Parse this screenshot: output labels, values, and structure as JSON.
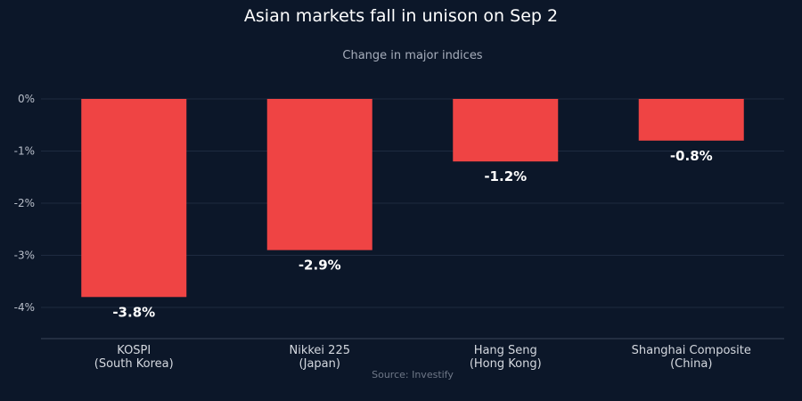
{
  "chart_data": {
    "type": "bar",
    "title": "Asian markets fall in unison on Sep 2",
    "subtitle": "Change in major indices",
    "source": "Source: Investify",
    "categories": [
      [
        "KOSPI",
        "(South Korea)"
      ],
      [
        "Nikkei 225",
        "(Japan)"
      ],
      [
        "Hang Seng",
        "(Hong Kong)"
      ],
      [
        "Shanghai Composite",
        "(China)"
      ]
    ],
    "values": [
      -3.8,
      -2.9,
      -1.2,
      -0.8
    ],
    "value_labels": [
      "-3.8%",
      "-2.9%",
      "-1.2%",
      "-0.8%"
    ],
    "yticks": [
      0,
      -1,
      -2,
      -3,
      -4
    ],
    "ytick_labels": [
      "0%",
      "-1%",
      "-2%",
      "-3%",
      "-4%"
    ],
    "ylim": [
      -4.6,
      0
    ],
    "grid": true,
    "colors": {
      "background": "#0c1729",
      "bar": "#ef4444",
      "grid": "#1e2b40",
      "axis": "#3a4659"
    }
  }
}
